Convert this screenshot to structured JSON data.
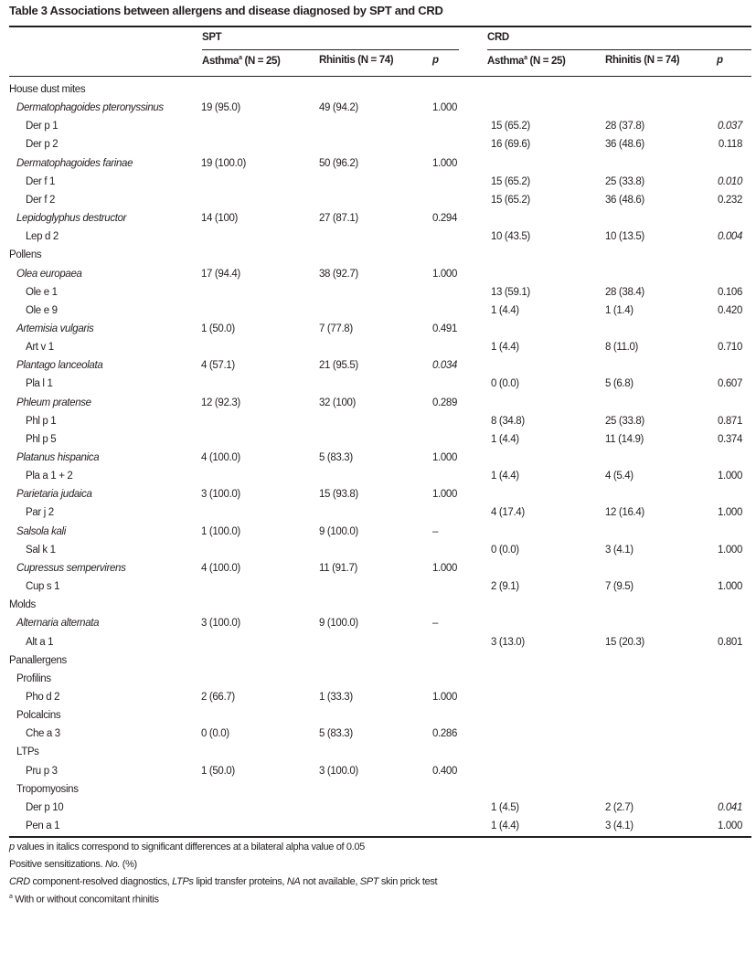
{
  "title": "Table 3  Associations between allergens and disease diagnosed by SPT and CRD",
  "groups": {
    "spt": "SPT",
    "crd": "CRD"
  },
  "columns": {
    "asthma": "Asthma",
    "asthma_sup": "a",
    "asthma_n": " (N = 25)",
    "rhinitis": "Rhinitis (N = 74)",
    "p": "p"
  },
  "rows": [
    {
      "label": "House dust mites",
      "level": 0
    },
    {
      "label": "Dermatophagoides pteronyssinus",
      "level": 1,
      "italic": true,
      "spt": [
        "19 (95.0)",
        "49 (94.2)",
        "1.000"
      ]
    },
    {
      "label": "Der p 1",
      "level": 2,
      "crd": [
        "15 (65.2)",
        "28 (37.8)",
        "0.037"
      ],
      "crd_p_italic": true
    },
    {
      "label": "Der p 2",
      "level": 2,
      "crd": [
        "16 (69.6)",
        "36 (48.6)",
        "0.118"
      ]
    },
    {
      "label": "Dermatophagoides farinae",
      "level": 1,
      "italic": true,
      "spt": [
        "19 (100.0)",
        "50 (96.2)",
        "1.000"
      ]
    },
    {
      "label": "Der f 1",
      "level": 2,
      "crd": [
        "15 (65.2)",
        "25 (33.8)",
        "0.010"
      ],
      "crd_p_italic": true
    },
    {
      "label": "Der f 2",
      "level": 2,
      "crd": [
        "15 (65.2)",
        "36 (48.6)",
        "0.232"
      ]
    },
    {
      "label": "Lepidoglyphus destructor",
      "level": 1,
      "italic": true,
      "spt": [
        "14 (100)",
        "27 (87.1)",
        "0.294"
      ]
    },
    {
      "label": "Lep d 2",
      "level": 2,
      "crd": [
        "10 (43.5)",
        "10 (13.5)",
        "0.004"
      ],
      "crd_p_italic": true
    },
    {
      "label": "Pollens",
      "level": 0
    },
    {
      "label": "Olea europaea",
      "level": 1,
      "italic": true,
      "spt": [
        "17 (94.4)",
        "38 (92.7)",
        "1.000"
      ]
    },
    {
      "label": "Ole e 1",
      "level": 2,
      "crd": [
        "13 (59.1)",
        "28 (38.4)",
        "0.106"
      ]
    },
    {
      "label": "Ole e 9",
      "level": 2,
      "crd": [
        "1 (4.4)",
        "1 (1.4)",
        "0.420"
      ]
    },
    {
      "label": "Artemisia vulgaris",
      "level": 1,
      "italic": true,
      "spt": [
        "1 (50.0)",
        "7 (77.8)",
        "0.491"
      ]
    },
    {
      "label": "Art v 1",
      "level": 2,
      "crd": [
        "1 (4.4)",
        "8 (11.0)",
        "0.710"
      ]
    },
    {
      "label": "Plantago lanceolata",
      "level": 1,
      "italic": true,
      "spt": [
        "4 (57.1)",
        "21 (95.5)",
        "0.034"
      ],
      "spt_p_italic": true
    },
    {
      "label": "Pla l 1",
      "level": 2,
      "crd": [
        "0 (0.0)",
        "5 (6.8)",
        "0.607"
      ]
    },
    {
      "label": "Phleum pratense",
      "level": 1,
      "italic": true,
      "spt": [
        "12 (92.3)",
        "32 (100)",
        "0.289"
      ]
    },
    {
      "label": "Phl p 1",
      "level": 2,
      "crd": [
        "8 (34.8)",
        "25 (33.8)",
        "0.871"
      ]
    },
    {
      "label": "Phl p 5",
      "level": 2,
      "crd": [
        "1 (4.4)",
        "11 (14.9)",
        "0.374"
      ]
    },
    {
      "label": "Platanus hispanica",
      "level": 1,
      "italic": true,
      "spt": [
        "4 (100.0)",
        "5 (83.3)",
        "1.000"
      ]
    },
    {
      "label": "Pla a 1 + 2",
      "level": 2,
      "crd": [
        "1 (4.4)",
        "4 (5.4)",
        "1.000"
      ]
    },
    {
      "label": "Parietaria judaica",
      "level": 1,
      "italic": true,
      "spt": [
        "3 (100.0)",
        "15 (93.8)",
        "1.000"
      ]
    },
    {
      "label": "Par j 2",
      "level": 2,
      "crd": [
        "4 (17.4)",
        "12 (16.4)",
        "1.000"
      ]
    },
    {
      "label": "Salsola kali",
      "level": 1,
      "italic": true,
      "spt": [
        "1 (100.0)",
        "9 (100.0)",
        "–"
      ]
    },
    {
      "label": "Sal k 1",
      "level": 2,
      "crd": [
        "0 (0.0)",
        "3 (4.1)",
        "1.000"
      ]
    },
    {
      "label": "Cupressus sempervirens",
      "level": 1,
      "italic": true,
      "spt": [
        "4 (100.0)",
        "11 (91.7)",
        "1.000"
      ]
    },
    {
      "label": "Cup s 1",
      "level": 2,
      "crd": [
        "2 (9.1)",
        "7 (9.5)",
        "1.000"
      ]
    },
    {
      "label": "Molds",
      "level": 0
    },
    {
      "label": "Alternaria alternata",
      "level": 1,
      "italic": true,
      "spt": [
        "3 (100.0)",
        "9 (100.0)",
        "–"
      ]
    },
    {
      "label": "Alt a 1",
      "level": 2,
      "crd": [
        "3 (13.0)",
        "15 (20.3)",
        "0.801"
      ]
    },
    {
      "label": "Panallergens",
      "level": 0
    },
    {
      "label": "Profilins",
      "level": 1
    },
    {
      "label": "Pho d 2",
      "level": 2,
      "spt": [
        "2 (66.7)",
        "1 (33.3)",
        "1.000"
      ]
    },
    {
      "label": "Polcalcins",
      "level": 1
    },
    {
      "label": "Che a 3",
      "level": 2,
      "spt": [
        "0 (0.0)",
        "5 (83.3)",
        "0.286"
      ]
    },
    {
      "label": "LTPs",
      "level": 1
    },
    {
      "label": "Pru p 3",
      "level": 2,
      "spt": [
        "1 (50.0)",
        "3 (100.0)",
        "0.400"
      ]
    },
    {
      "label": "Tropomyosins",
      "level": 1
    },
    {
      "label": "Der p 10",
      "level": 2,
      "crd": [
        "1 (4.5)",
        "2 (2.7)",
        "0.041"
      ],
      "crd_p_italic": true
    },
    {
      "label": "Pen a 1",
      "level": 2,
      "crd": [
        "1 (4.4)",
        "3 (4.1)",
        "1.000"
      ]
    }
  ],
  "footnotes": {
    "f1_i": "p",
    "f1": " values in italics correspond to significant differences at a bilateral alpha value of 0.05",
    "f2": "Positive sensitizations. ",
    "f2_i": "No.",
    "f2_b": " (%)",
    "f3_a_i": "CRD",
    "f3_a": " component-resolved diagnostics, ",
    "f3_b_i": "LTPs",
    "f3_b": " lipid transfer proteins, ",
    "f3_c_i": "NA",
    "f3_c": " not available, ",
    "f3_d_i": "SPT",
    "f3_d": " skin prick test",
    "f4_sup": "a",
    "f4": "  With or without concomitant rhinitis"
  }
}
